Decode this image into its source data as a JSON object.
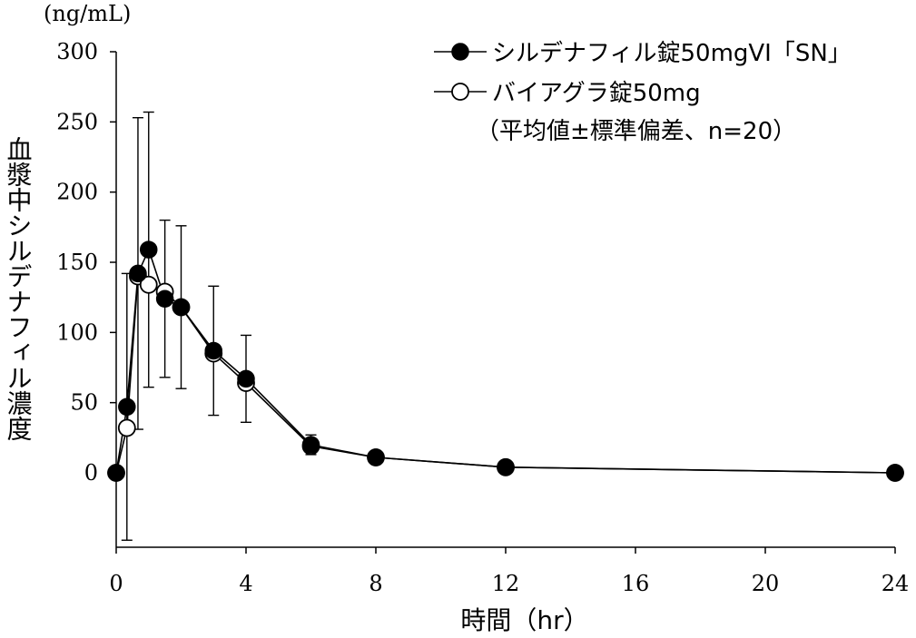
{
  "chart_data": {
    "type": "line",
    "y_unit": "(ng/mL)",
    "ylabel": "血漿中シルデナフィル濃度",
    "xlabel": "時間（hr）",
    "xlim": [
      0,
      24
    ],
    "ylim": [
      -55,
      300
    ],
    "x_ticks": [
      0,
      4,
      8,
      12,
      16,
      20,
      24
    ],
    "y_ticks": [
      0,
      50,
      100,
      150,
      200,
      250,
      300
    ],
    "grid": false,
    "legend_position": "top-right",
    "legend_note": "（平均値±標準偏差、n=20）",
    "series": [
      {
        "name": "シルデナフィル錠50mgVI「SN」",
        "marker": "filled-circle",
        "color": "#000000",
        "x": [
          0,
          0.33,
          0.67,
          1.0,
          1.5,
          2.0,
          3.0,
          4.0,
          6.0,
          8.0,
          12.0,
          24.0
        ],
        "y": [
          0,
          47,
          142,
          159,
          124,
          118,
          87,
          67,
          20,
          11,
          4,
          0
        ],
        "error": [
          0,
          95,
          111,
          98,
          56,
          58,
          46,
          31,
          7,
          0,
          0,
          0
        ]
      },
      {
        "name": "バイアグラ錠50mg",
        "marker": "open-circle",
        "color": "#000000",
        "x": [
          0,
          0.33,
          0.67,
          1.0,
          1.5,
          2.0,
          3.0,
          4.0,
          6.0,
          8.0,
          12.0,
          24.0
        ],
        "y": [
          0,
          32,
          140,
          134,
          129,
          118,
          85,
          64,
          19,
          11,
          4,
          0
        ],
        "error": [
          0,
          0,
          0,
          0,
          0,
          0,
          0,
          0,
          0,
          0,
          0,
          0
        ]
      }
    ]
  }
}
